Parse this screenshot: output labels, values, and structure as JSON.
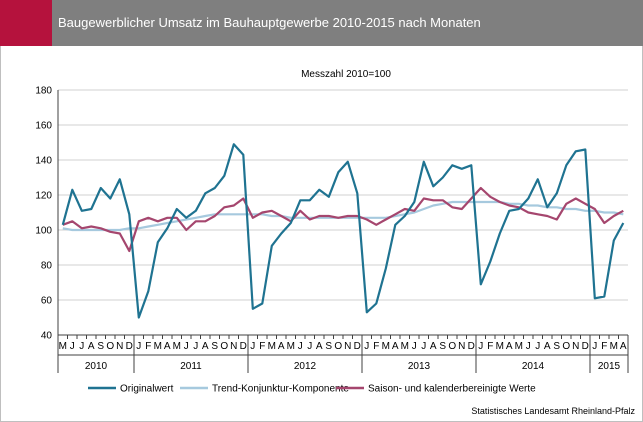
{
  "header": {
    "title": "Baugewerblicher Umsatz im Bauhauptgewerbe 2010-2015 nach Monaten"
  },
  "source": "Statistisches Landesamt Rheinland-Pfalz",
  "chart_data": {
    "type": "line",
    "subtitle": "Messzahl 2010=100",
    "ylim": [
      40,
      180
    ],
    "yticks": [
      40,
      60,
      80,
      100,
      120,
      140,
      160,
      180
    ],
    "grid": true,
    "legend_position": "bottom",
    "categories": [
      "M",
      "J",
      "J",
      "A",
      "S",
      "O",
      "N",
      "D",
      "J",
      "F",
      "M",
      "A",
      "M",
      "J",
      "J",
      "A",
      "S",
      "O",
      "N",
      "D",
      "J",
      "F",
      "M",
      "A",
      "M",
      "J",
      "J",
      "A",
      "S",
      "O",
      "N",
      "D",
      "J",
      "F",
      "M",
      "A",
      "M",
      "J",
      "J",
      "A",
      "S",
      "O",
      "N",
      "D",
      "J",
      "F",
      "M",
      "A",
      "M",
      "J",
      "J",
      "A",
      "S",
      "O",
      "N",
      "D",
      "J",
      "F",
      "M",
      "A"
    ],
    "year_groups": [
      {
        "label": "2010",
        "start": 0,
        "count": 8
      },
      {
        "label": "2011",
        "start": 8,
        "count": 12
      },
      {
        "label": "2012",
        "start": 20,
        "count": 12
      },
      {
        "label": "2013",
        "start": 32,
        "count": 12
      },
      {
        "label": "2014",
        "start": 44,
        "count": 12
      },
      {
        "label": "2015",
        "start": 56,
        "count": 4
      }
    ],
    "series": [
      {
        "name": "Originalwert",
        "color": "#1f7391",
        "values": [
          103,
          123,
          111,
          112,
          124,
          118,
          129,
          109,
          50,
          65,
          93,
          101,
          112,
          107,
          111,
          121,
          124,
          131,
          149,
          143,
          55,
          58,
          91,
          98,
          104,
          117,
          117,
          123,
          119,
          133,
          139,
          121,
          53,
          58,
          78,
          103,
          108,
          116,
          139,
          125,
          130,
          137,
          135,
          137,
          69,
          82,
          98,
          111,
          112,
          118,
          129,
          113,
          121,
          137,
          145,
          146,
          61,
          62,
          94,
          104
        ]
      },
      {
        "name": "Trend-Konjunktur-Komponente",
        "color": "#a6c9de",
        "values": [
          101,
          100,
          100,
          100,
          100,
          100,
          100,
          101,
          101,
          102,
          103,
          104,
          105,
          106,
          107,
          108,
          109,
          109,
          109,
          109,
          109,
          109,
          108,
          108,
          107,
          107,
          107,
          107,
          107,
          107,
          107,
          107,
          107,
          107,
          107,
          108,
          109,
          110,
          112,
          114,
          115,
          116,
          116,
          116,
          116,
          116,
          116,
          115,
          115,
          114,
          114,
          113,
          113,
          112,
          112,
          111,
          111,
          110,
          110,
          109
        ]
      },
      {
        "name": "Saison- und kalenderbereinigte Werte",
        "color": "#a5466e",
        "values": [
          103,
          105,
          101,
          102,
          101,
          99,
          98,
          88,
          105,
          107,
          105,
          107,
          107,
          100,
          105,
          105,
          108,
          113,
          114,
          118,
          107,
          110,
          111,
          108,
          105,
          111,
          106,
          108,
          108,
          107,
          108,
          108,
          106,
          103,
          106,
          109,
          112,
          111,
          118,
          117,
          117,
          113,
          112,
          118,
          124,
          119,
          116,
          114,
          113,
          110,
          109,
          108,
          106,
          115,
          118,
          115,
          112,
          104,
          108,
          111
        ]
      }
    ]
  }
}
